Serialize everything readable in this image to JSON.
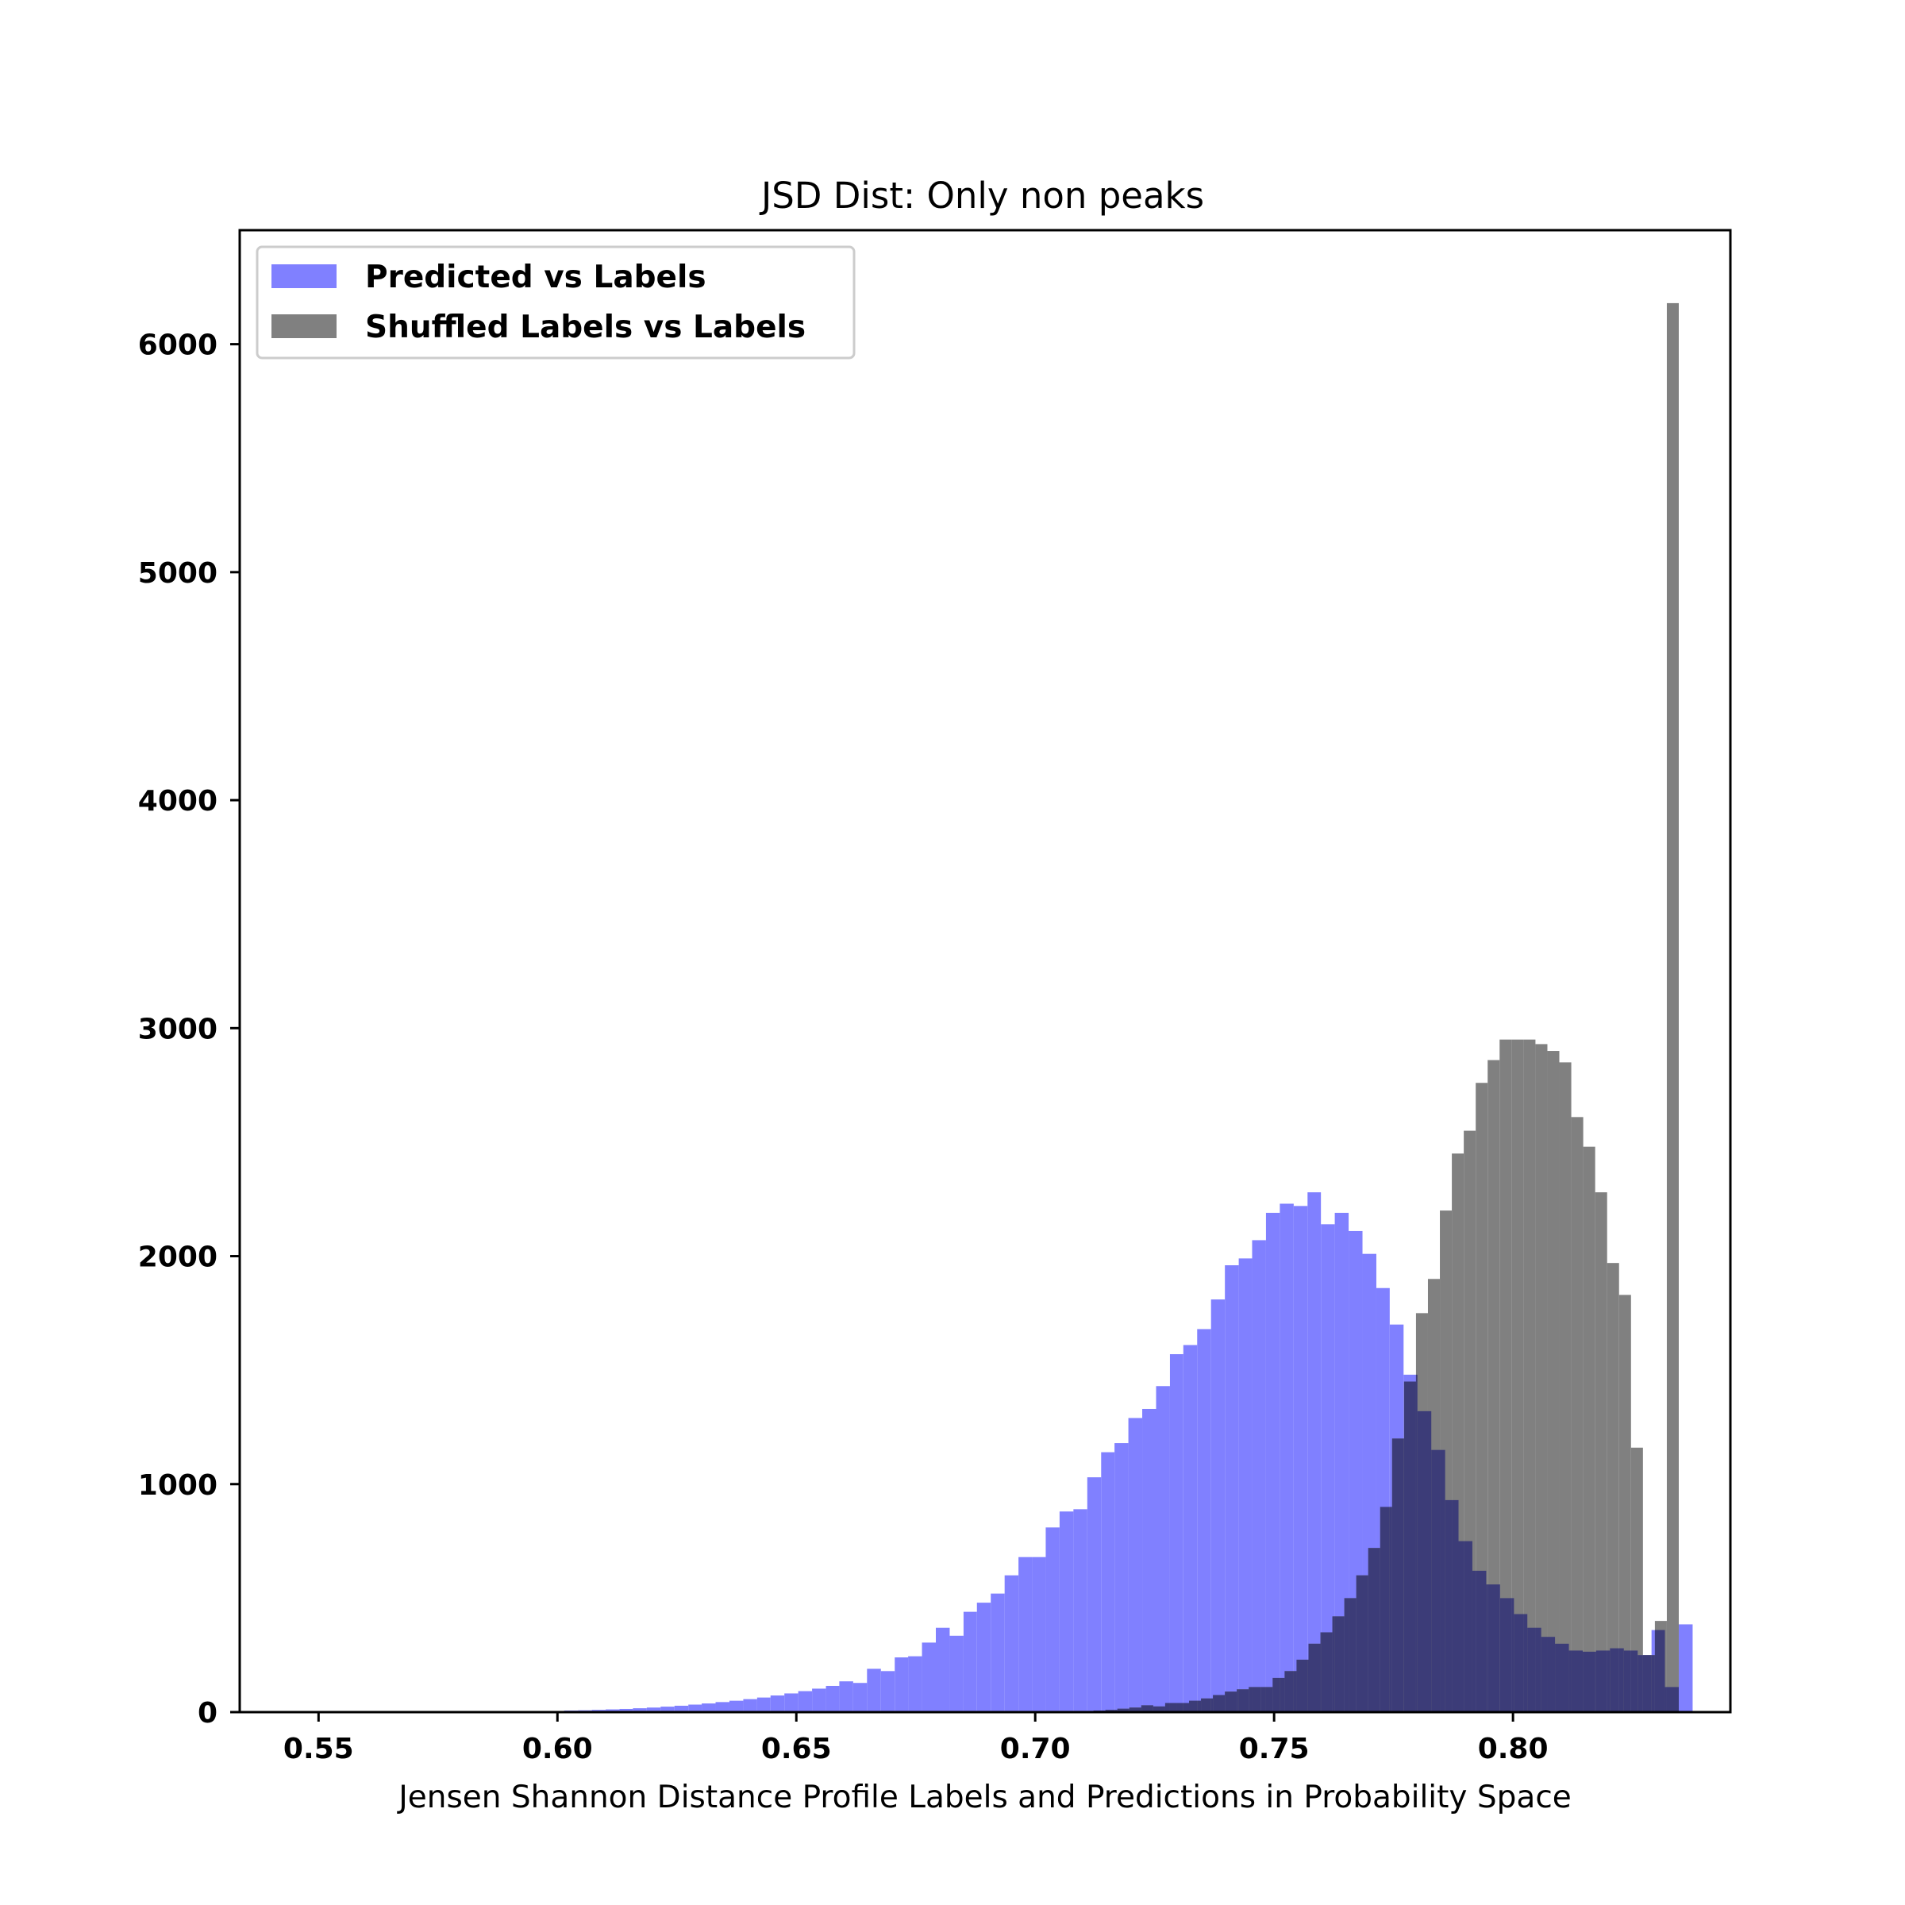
{
  "chart_data": {
    "type": "bar",
    "title": "JSD Dist: Only non peaks",
    "xlabel": "Jensen Shannon Distance Profile Labels and Predictions in Probability Space",
    "ylabel": "",
    "xlim": [
      0.5335,
      0.8455
    ],
    "ylim": [
      0,
      6500
    ],
    "x_ticks": [
      0.55,
      0.6,
      0.65,
      0.7,
      0.75,
      0.8
    ],
    "x_tick_labels": [
      "0.55",
      "0.60",
      "0.65",
      "0.70",
      "0.75",
      "0.80"
    ],
    "y_ticks": [
      0,
      1000,
      2000,
      3000,
      4000,
      5000,
      6000
    ],
    "y_tick_labels": [
      "0",
      "1000",
      "2000",
      "3000",
      "4000",
      "5000",
      "6000"
    ],
    "grid": false,
    "legend_position": "top-left",
    "series": [
      {
        "name": "Predicted vs Labels",
        "color": "#8080ff",
        "bins": [
          [
            0.5986,
            0.6014,
            5
          ],
          [
            0.6014,
            0.6043,
            7
          ],
          [
            0.6043,
            0.6072,
            8
          ],
          [
            0.6072,
            0.6101,
            10
          ],
          [
            0.6101,
            0.613,
            12
          ],
          [
            0.613,
            0.6158,
            14
          ],
          [
            0.6158,
            0.6187,
            17
          ],
          [
            0.6187,
            0.6216,
            20
          ],
          [
            0.6216,
            0.6245,
            24
          ],
          [
            0.6245,
            0.6274,
            28
          ],
          [
            0.6274,
            0.6302,
            33
          ],
          [
            0.6302,
            0.6331,
            38
          ],
          [
            0.6331,
            0.636,
            44
          ],
          [
            0.636,
            0.6389,
            50
          ],
          [
            0.6389,
            0.6418,
            57
          ],
          [
            0.6418,
            0.6446,
            64
          ],
          [
            0.6446,
            0.6475,
            73
          ],
          [
            0.6475,
            0.6504,
            82
          ],
          [
            0.6504,
            0.6533,
            92
          ],
          [
            0.6533,
            0.6562,
            103
          ],
          [
            0.6562,
            0.659,
            115
          ],
          [
            0.659,
            0.6619,
            135
          ],
          [
            0.6619,
            0.6648,
            128
          ],
          [
            0.6648,
            0.6677,
            190
          ],
          [
            0.6677,
            0.6706,
            180
          ],
          [
            0.6706,
            0.6734,
            240
          ],
          [
            0.6734,
            0.6763,
            245
          ],
          [
            0.6763,
            0.6792,
            305
          ],
          [
            0.6792,
            0.6821,
            370
          ],
          [
            0.6821,
            0.685,
            335
          ],
          [
            0.685,
            0.6878,
            440
          ],
          [
            0.6878,
            0.6907,
            480
          ],
          [
            0.6907,
            0.6936,
            520
          ],
          [
            0.6936,
            0.6965,
            600
          ],
          [
            0.6965,
            0.6994,
            680
          ],
          [
            0.6994,
            0.7022,
            680
          ],
          [
            0.7022,
            0.7051,
            810
          ],
          [
            0.7051,
            0.708,
            880
          ],
          [
            0.708,
            0.7109,
            890
          ],
          [
            0.7109,
            0.7138,
            1030
          ],
          [
            0.7138,
            0.7166,
            1140
          ],
          [
            0.7166,
            0.7195,
            1180
          ],
          [
            0.7195,
            0.7224,
            1290
          ],
          [
            0.7224,
            0.7253,
            1330
          ],
          [
            0.7253,
            0.7282,
            1430
          ],
          [
            0.7282,
            0.731,
            1570
          ],
          [
            0.731,
            0.7339,
            1610
          ],
          [
            0.7339,
            0.7368,
            1680
          ],
          [
            0.7368,
            0.7397,
            1810
          ],
          [
            0.7397,
            0.7426,
            1960
          ],
          [
            0.7426,
            0.7454,
            1990
          ],
          [
            0.7454,
            0.7483,
            2070
          ],
          [
            0.7483,
            0.7512,
            2190
          ],
          [
            0.7512,
            0.7541,
            2230
          ],
          [
            0.7541,
            0.757,
            2220
          ],
          [
            0.757,
            0.7598,
            2280
          ],
          [
            0.7598,
            0.7627,
            2140
          ],
          [
            0.7627,
            0.7656,
            2190
          ],
          [
            0.7656,
            0.7685,
            2110
          ],
          [
            0.7685,
            0.7714,
            2010
          ],
          [
            0.7714,
            0.7742,
            1860
          ],
          [
            0.7742,
            0.7771,
            1700
          ],
          [
            0.7771,
            0.78,
            1480
          ],
          [
            0.78,
            0.7829,
            1320
          ],
          [
            0.7829,
            0.7858,
            1150
          ],
          [
            0.7858,
            0.7886,
            930
          ],
          [
            0.7886,
            0.7915,
            750
          ],
          [
            0.7915,
            0.7944,
            620
          ],
          [
            0.7944,
            0.7973,
            560
          ],
          [
            0.7973,
            0.8002,
            500
          ],
          [
            0.8002,
            0.803,
            430
          ],
          [
            0.803,
            0.8059,
            370
          ],
          [
            0.8059,
            0.8088,
            330
          ],
          [
            0.8088,
            0.8117,
            300
          ],
          [
            0.8117,
            0.8146,
            270
          ],
          [
            0.8146,
            0.8174,
            265
          ],
          [
            0.8174,
            0.8203,
            270
          ],
          [
            0.8203,
            0.8232,
            280
          ],
          [
            0.8232,
            0.8261,
            270
          ],
          [
            0.8261,
            0.829,
            250
          ],
          [
            0.829,
            0.8318,
            360
          ],
          [
            0.8318,
            0.8347,
            110
          ],
          [
            0.8347,
            0.8376,
            385
          ]
        ]
      },
      {
        "name": "Shuffled Labels vs Labels",
        "color": "#808080",
        "bins": [
          [
            0.7097,
            0.7122,
            5
          ],
          [
            0.7122,
            0.7147,
            7
          ],
          [
            0.7147,
            0.7172,
            10
          ],
          [
            0.7172,
            0.7197,
            15
          ],
          [
            0.7197,
            0.7222,
            20
          ],
          [
            0.7222,
            0.7247,
            30
          ],
          [
            0.7247,
            0.7272,
            25
          ],
          [
            0.7272,
            0.7297,
            40
          ],
          [
            0.7297,
            0.7322,
            40
          ],
          [
            0.7322,
            0.7347,
            50
          ],
          [
            0.7347,
            0.7372,
            60
          ],
          [
            0.7372,
            0.7397,
            75
          ],
          [
            0.7397,
            0.7422,
            90
          ],
          [
            0.7422,
            0.7447,
            100
          ],
          [
            0.7447,
            0.7472,
            110
          ],
          [
            0.7472,
            0.7497,
            110
          ],
          [
            0.7497,
            0.7522,
            150
          ],
          [
            0.7522,
            0.7547,
            180
          ],
          [
            0.7547,
            0.7572,
            230
          ],
          [
            0.7572,
            0.7597,
            300
          ],
          [
            0.7597,
            0.7622,
            350
          ],
          [
            0.7622,
            0.7647,
            420
          ],
          [
            0.7647,
            0.7672,
            500
          ],
          [
            0.7672,
            0.7697,
            600
          ],
          [
            0.7697,
            0.7722,
            720
          ],
          [
            0.7722,
            0.7747,
            900
          ],
          [
            0.7747,
            0.7772,
            1200
          ],
          [
            0.7772,
            0.7797,
            1450
          ],
          [
            0.7797,
            0.7822,
            1750
          ],
          [
            0.7822,
            0.7847,
            1900
          ],
          [
            0.7847,
            0.7872,
            2200
          ],
          [
            0.7872,
            0.7897,
            2450
          ],
          [
            0.7897,
            0.7922,
            2550
          ],
          [
            0.7922,
            0.7947,
            2760
          ],
          [
            0.7947,
            0.7972,
            2860
          ],
          [
            0.7972,
            0.7997,
            2950
          ],
          [
            0.7997,
            0.8022,
            2950
          ],
          [
            0.8022,
            0.8047,
            2950
          ],
          [
            0.8047,
            0.8072,
            2930
          ],
          [
            0.8072,
            0.8097,
            2900
          ],
          [
            0.8097,
            0.8122,
            2850
          ],
          [
            0.8122,
            0.8147,
            2610
          ],
          [
            0.8147,
            0.8172,
            2480
          ],
          [
            0.8172,
            0.8197,
            2280
          ],
          [
            0.8197,
            0.8222,
            1970
          ],
          [
            0.8222,
            0.8247,
            1830
          ],
          [
            0.8247,
            0.8272,
            1160
          ],
          [
            0.8272,
            0.8297,
            250
          ],
          [
            0.8297,
            0.8322,
            400
          ],
          [
            0.8322,
            0.8347,
            6180
          ]
        ]
      }
    ],
    "overlap_color": "#3c3c78"
  }
}
